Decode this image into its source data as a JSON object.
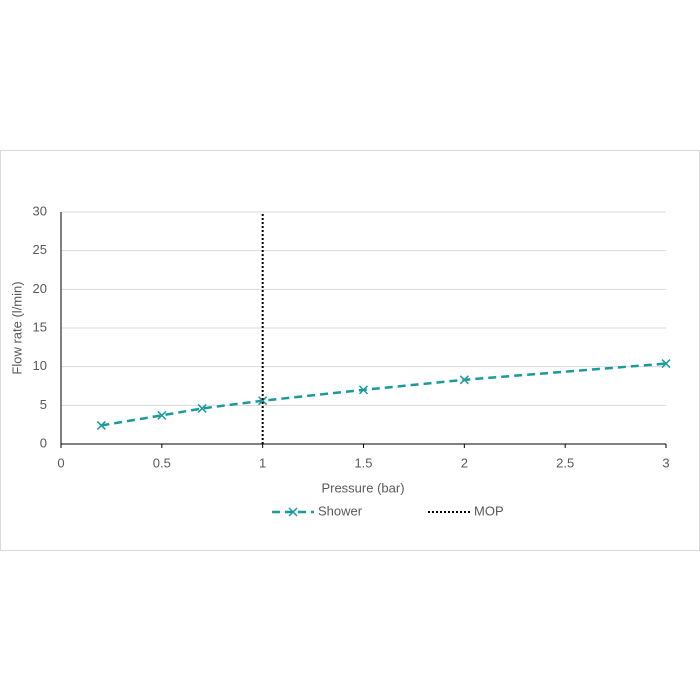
{
  "chart_data": {
    "type": "line",
    "x_label": "Pressure (bar)",
    "y_label": "Flow rate (l/min)",
    "xlim": [
      0,
      3
    ],
    "xticks": [
      0,
      0.5,
      1,
      1.5,
      2,
      2.5,
      3
    ],
    "ylim": [
      0,
      30
    ],
    "yticks": [
      0,
      5,
      10,
      15,
      20,
      25,
      30
    ],
    "grid": true,
    "series": [
      {
        "name": "Shower",
        "color": "#1a9a9a",
        "dash": "dashed",
        "marker": "x",
        "x": [
          0.2,
          0.5,
          0.7,
          1,
          1.5,
          2,
          3
        ],
        "values": [
          2.4,
          3.7,
          4.6,
          5.6,
          7.0,
          8.3,
          10.4
        ]
      },
      {
        "name": "MOP",
        "color": "#000000",
        "dash": "dotted",
        "x": [
          1,
          1
        ],
        "values": [
          0,
          30
        ]
      }
    ]
  }
}
